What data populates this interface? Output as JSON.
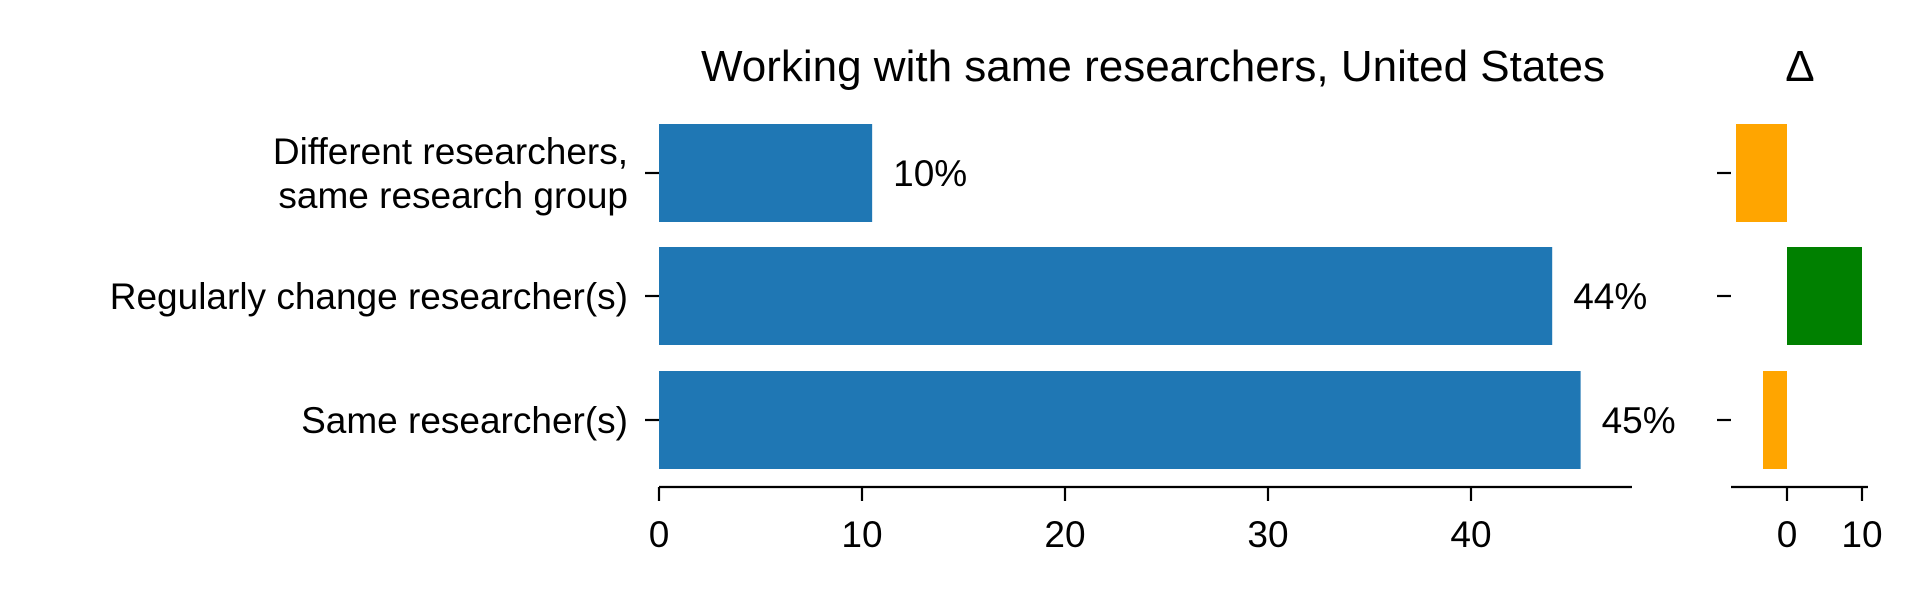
{
  "chart_data": [
    {
      "type": "bar",
      "orientation": "horizontal",
      "title": "Working with same researchers, United States",
      "categories": [
        "Different researchers,\nsame research group",
        "Regularly change researcher(s)",
        "Same researcher(s)"
      ],
      "values": [
        10.5,
        44.0,
        45.4
      ],
      "value_labels": [
        "10%",
        "44%",
        "45%"
      ],
      "xlim": [
        0,
        48
      ],
      "xticks": [
        0,
        10,
        20,
        30,
        40
      ],
      "xlabel": "",
      "ylabel": "",
      "grid": false,
      "color": "#1f77b4"
    },
    {
      "type": "bar",
      "orientation": "horizontal",
      "title": "Δ",
      "categories": [
        "Different researchers,\nsame research group",
        "Regularly change researcher(s)",
        "Same researcher(s)"
      ],
      "values": [
        -6.8,
        10.0,
        -3.2
      ],
      "xlim": [
        -7.5,
        10.5
      ],
      "xticks": [
        0,
        10
      ],
      "xlabel": "",
      "ylabel": "",
      "grid": false,
      "colors": {
        "positive": "#008000",
        "negative": "#ffa500"
      }
    }
  ]
}
